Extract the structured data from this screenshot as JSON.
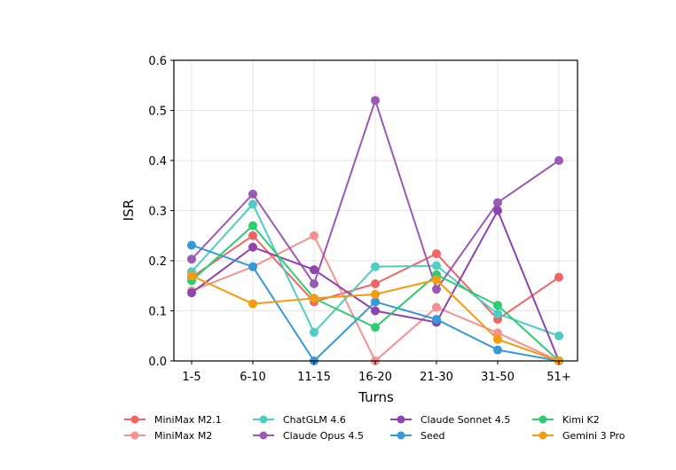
{
  "chart_data": {
    "type": "line",
    "title": "",
    "xlabel": "Turns",
    "ylabel": "ISR",
    "ylim": [
      0,
      0.6
    ],
    "yticks": [
      "0.0",
      "0.1",
      "0.2",
      "0.3",
      "0.4",
      "0.5",
      "0.6"
    ],
    "categories": [
      "1-5",
      "6-10",
      "11-15",
      "16-20",
      "21-30",
      "31-50",
      "51+"
    ],
    "grid": true,
    "legend_placement": "bottom",
    "series": [
      {
        "name": "MiniMax M2.1",
        "color": "#f16464",
        "values": [
          0.167,
          0.25,
          0.118,
          0.154,
          0.214,
          0.083,
          0.167
        ]
      },
      {
        "name": "MiniMax M2",
        "color": "#f79090",
        "values": [
          0.14,
          0.188,
          0.25,
          0.0,
          0.107,
          0.056,
          0.0
        ]
      },
      {
        "name": "ChatGLM 4.6",
        "color": "#4ecdc4",
        "values": [
          0.178,
          0.313,
          0.057,
          0.188,
          0.19,
          0.094,
          0.05
        ]
      },
      {
        "name": "Claude Opus 4.5",
        "color": "#9b59b6",
        "values": [
          0.203,
          0.333,
          0.154,
          0.52,
          0.143,
          0.316,
          0.4
        ]
      },
      {
        "name": "Claude Sonnet 4.5",
        "color": "#8e44ad",
        "values": [
          0.136,
          0.227,
          0.182,
          0.1,
          0.077,
          0.3,
          0.0
        ]
      },
      {
        "name": "Seed",
        "color": "#3498db",
        "values": [
          0.231,
          0.188,
          0.0,
          0.118,
          0.083,
          0.022,
          0.0
        ]
      },
      {
        "name": "Kimi K2",
        "color": "#2ecc71",
        "values": [
          0.16,
          0.27,
          0.125,
          0.067,
          0.172,
          0.111,
          0.0
        ]
      },
      {
        "name": "Gemini 3 Pro",
        "color": "#f39c12",
        "values": [
          0.17,
          0.114,
          0.125,
          0.133,
          0.162,
          0.043,
          0.0
        ]
      }
    ]
  }
}
